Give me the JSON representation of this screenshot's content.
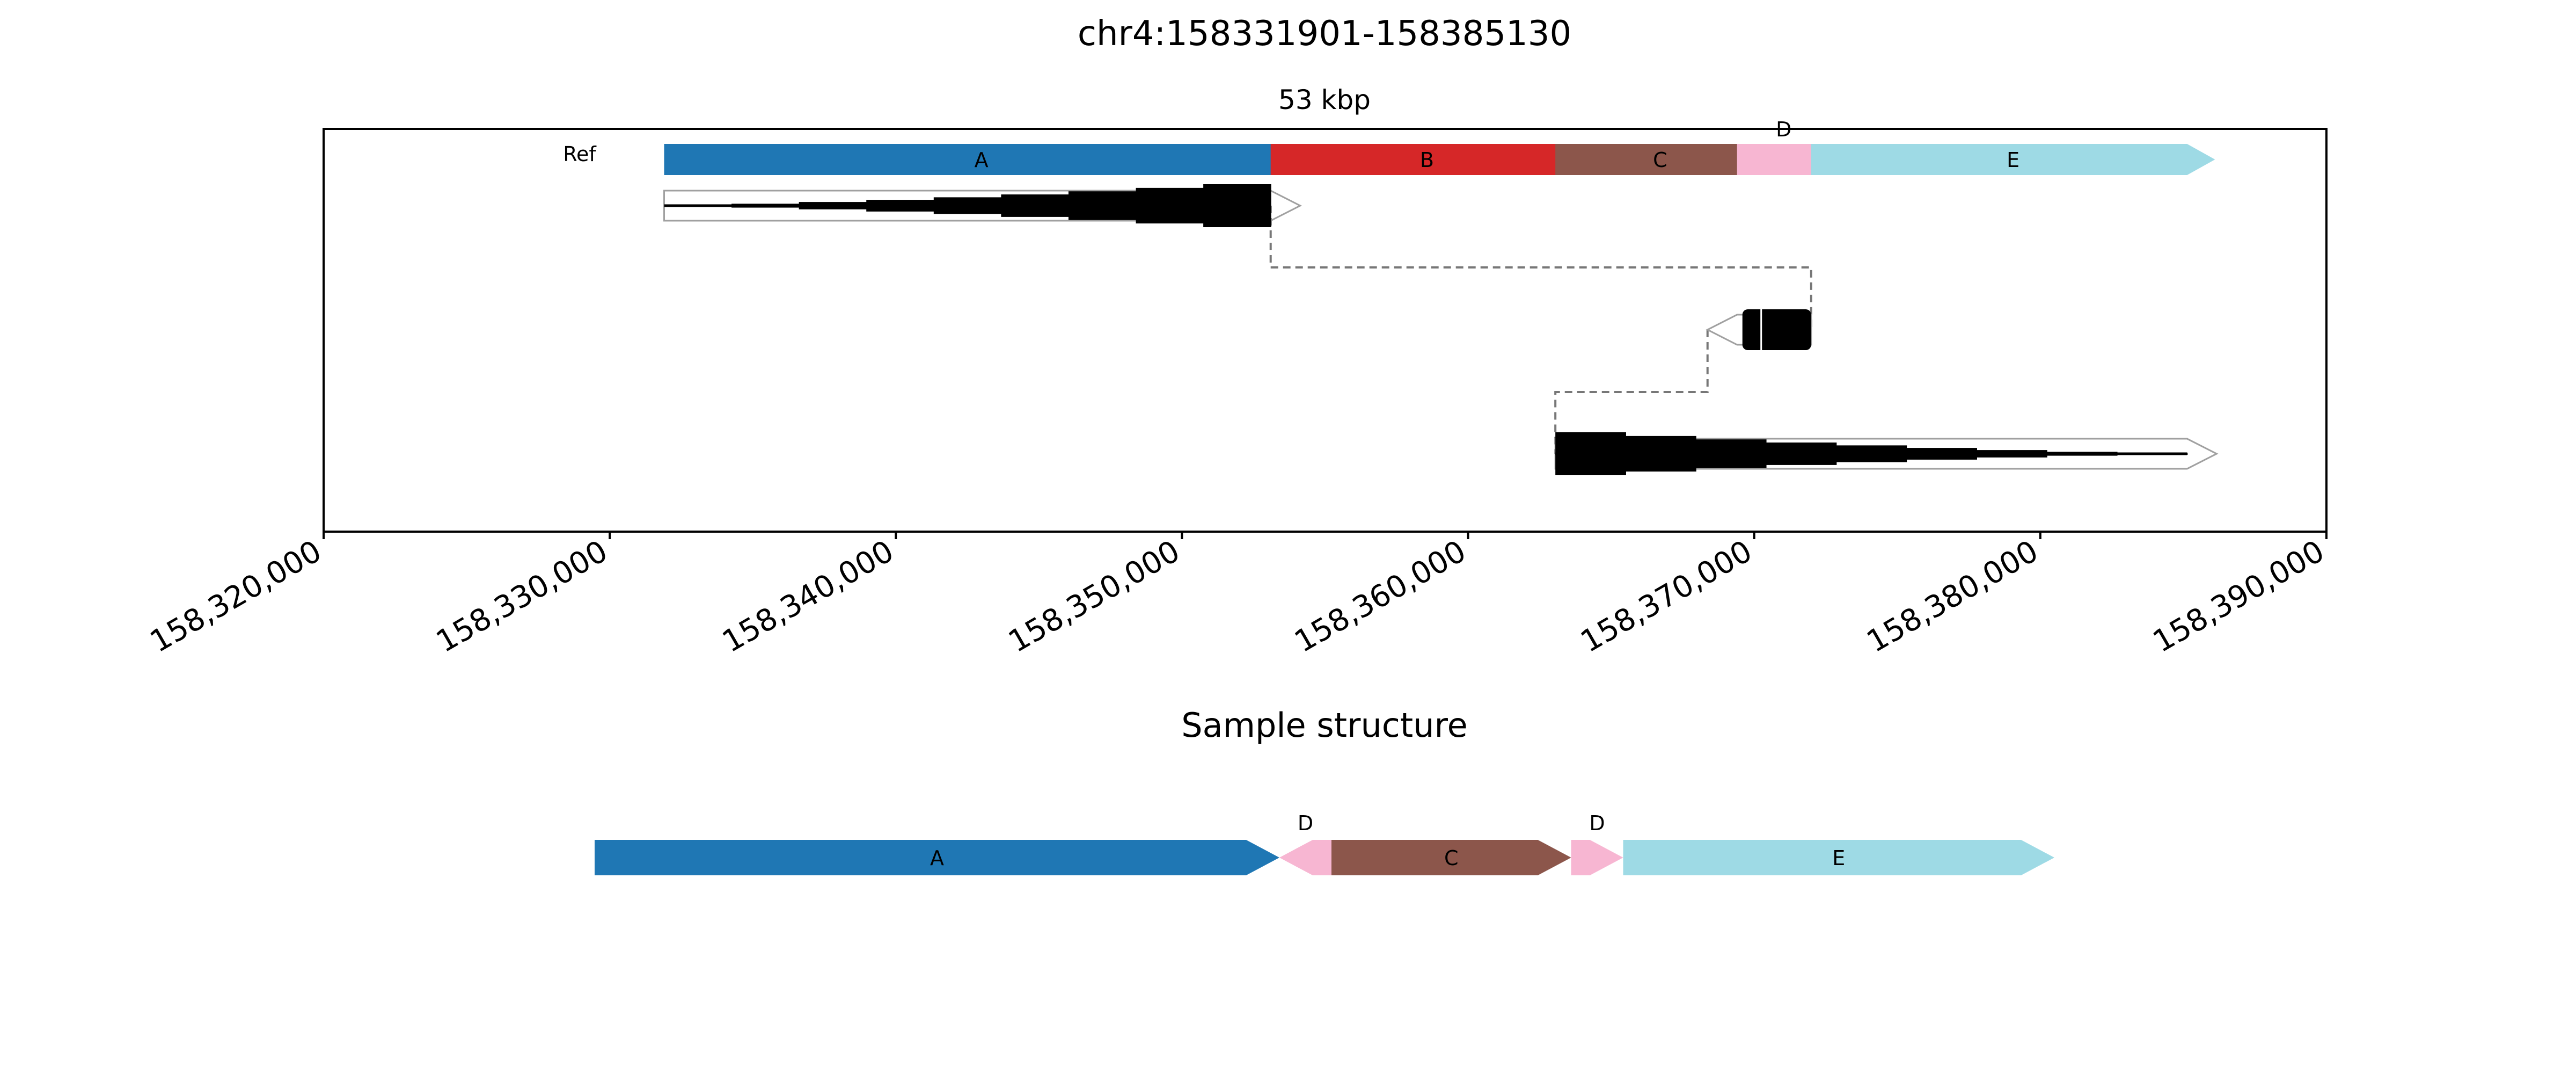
{
  "title": "chr4:158331901-158385130",
  "span_label": "53 kbp",
  "ref_label": "Ref",
  "sample_title": "Sample structure",
  "colors": {
    "A": "#1f77b4",
    "B": "#d62728",
    "C": "#8c564b",
    "D": "#f7b6d2",
    "E": "#9edae5",
    "read": "#000000",
    "outline": "#a0a0a0",
    "connector": "#777777"
  },
  "axis": {
    "min": 158320000,
    "max": 158390000,
    "ticks": [
      {
        "value": 158320000,
        "label": "158,320,000"
      },
      {
        "value": 158330000,
        "label": "158,330,000"
      },
      {
        "value": 158340000,
        "label": "158,340,000"
      },
      {
        "value": 158350000,
        "label": "158,350,000"
      },
      {
        "value": 158360000,
        "label": "158,360,000"
      },
      {
        "value": 158370000,
        "label": "158,370,000"
      },
      {
        "value": 158380000,
        "label": "158,380,000"
      },
      {
        "value": 158390000,
        "label": "158,390,000"
      }
    ]
  },
  "ref_segments": [
    {
      "label": "A",
      "start": 158331901,
      "end": 158353100,
      "strand": "+"
    },
    {
      "label": "B",
      "start": 158353100,
      "end": 158363050,
      "strand": "+"
    },
    {
      "label": "C",
      "start": 158363050,
      "end": 158369400,
      "strand": "+"
    },
    {
      "label": "D",
      "start": 158369400,
      "end": 158371990,
      "strand": "+"
    },
    {
      "label": "E",
      "start": 158371990,
      "end": 158385130,
      "strand": "+"
    }
  ],
  "alignments": [
    {
      "start": 158331901,
      "end": 158353100,
      "strand": "+"
    },
    {
      "start": 158369400,
      "end": 158371990,
      "strand": "-"
    },
    {
      "start": 158363050,
      "end": 158385130,
      "strand": "+"
    }
  ],
  "sample_segments": [
    {
      "label": "A",
      "length": 22630,
      "strand": "+"
    },
    {
      "label": "D",
      "length": 1720,
      "strand": "-"
    },
    {
      "label": "C",
      "length": 7920,
      "strand": "+"
    },
    {
      "label": "D",
      "length": 1720,
      "strand": "+"
    },
    {
      "label": "E",
      "length": 14250,
      "strand": "+"
    }
  ]
}
